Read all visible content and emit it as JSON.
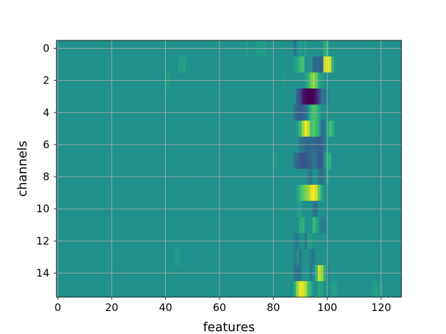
{
  "chart_data": {
    "type": "heatmap",
    "xlabel": "features",
    "ylabel": "channels",
    "x_ticks": [
      0,
      20,
      40,
      60,
      80,
      100,
      120
    ],
    "y_ticks": [
      0,
      2,
      4,
      6,
      8,
      10,
      12,
      14
    ],
    "xlim": [
      -0.5,
      127.5
    ],
    "ylim": [
      15.5,
      -0.5
    ],
    "n_rows": 16,
    "n_cols": 128,
    "grid": true,
    "colormap": "viridis",
    "default_value": 0.0,
    "value_range": [
      -1.0,
      1.0
    ],
    "cells": [
      {
        "row": 0,
        "values": {
          "70": 0.08,
          "74": 0.1,
          "75": 0.12,
          "76": 0.1,
          "77": 0.08,
          "88": -0.25,
          "90": 0.1,
          "91": 0.05,
          "92": 0.12,
          "99": 0.25,
          "100": 0.3
        }
      },
      {
        "row": 1,
        "values": {
          "45": 0.12,
          "46": 0.12,
          "47": 0.12,
          "88": 0.1,
          "89": 0.2,
          "90": 0.35,
          "91": 0.4,
          "95": -0.3,
          "96": -0.3,
          "97": -0.35,
          "98": -0.35,
          "99": 0.8,
          "100": 1.0,
          "101": 0.85,
          "102": 0.3
        }
      },
      {
        "row": 2,
        "values": {
          "40": 0.08,
          "41": 0.08,
          "84": 0.08,
          "92": 0.15,
          "93": 0.3,
          "94": 0.55,
          "95": 0.7,
          "96": 0.5,
          "97": 0.2,
          "98": 0.1
        }
      },
      {
        "row": 3,
        "values": {
          "89": -0.4,
          "90": -0.55,
          "91": -0.85,
          "92": -0.95,
          "93": -1.0,
          "94": -1.0,
          "95": -0.95,
          "96": -0.8,
          "97": -0.55,
          "98": -0.25,
          "99": -0.2,
          "100": -0.15
        }
      },
      {
        "row": 4,
        "values": {
          "88": -0.3,
          "89": -0.35,
          "90": -0.4,
          "91": -0.35,
          "92": -0.3,
          "94": 0.3,
          "95": 0.45,
          "96": 0.35,
          "97": 0.2
        }
      },
      {
        "row": 5,
        "values": {
          "89": 0.15,
          "90": 0.35,
          "91": 0.7,
          "92": 0.95,
          "93": 0.8,
          "94": 0.4,
          "95": 0.5,
          "96": 0.35,
          "97": 0.2,
          "98": -0.25,
          "99": -0.2,
          "100": 0.1,
          "101": 0.4,
          "102": 0.3
        }
      },
      {
        "row": 6,
        "values": {
          "90": -0.2,
          "91": -0.25,
          "92": -0.3,
          "93": -0.35,
          "94": -0.3,
          "95": -0.3,
          "96": -0.35,
          "97": -0.4,
          "98": -0.35,
          "99": -0.2
        }
      },
      {
        "row": 7,
        "values": {
          "80": 0.08,
          "81": 0.08,
          "88": -0.25,
          "89": -0.35,
          "90": -0.45,
          "91": -0.5,
          "92": -0.45,
          "93": -0.4,
          "94": -0.35,
          "95": -0.2,
          "96": -0.3,
          "97": -0.45,
          "98": -0.4,
          "100": 0.25,
          "101": 0.3
        }
      },
      {
        "row": 8,
        "values": {
          "93": -0.15,
          "94": -0.2,
          "97": -0.2,
          "98": -0.25,
          "99": -0.15,
          "100": 0.15
        }
      },
      {
        "row": 9,
        "values": {
          "89": 0.15,
          "90": 0.35,
          "91": 0.5,
          "92": 0.6,
          "93": 0.7,
          "94": 0.9,
          "95": 1.0,
          "96": 0.85,
          "97": 0.5,
          "98": 0.2
        }
      },
      {
        "row": 10,
        "values": {
          "89": 0.1,
          "90": 0.15,
          "95": -0.2,
          "96": -0.25
        }
      },
      {
        "row": 11,
        "values": {
          "90": 0.25,
          "91": 0.3,
          "95": 0.35,
          "96": 0.2,
          "98": -0.2,
          "99": -0.15
        }
      },
      {
        "row": 12,
        "values": {
          "88": -0.15,
          "89": -0.2,
          "92": -0.2,
          "93": 0.1,
          "94": 0.12
        }
      },
      {
        "row": 13,
        "values": {
          "44": 0.08,
          "45": 0.08,
          "88": -0.15,
          "90": -0.2,
          "94": -0.15,
          "95": -0.2
        }
      },
      {
        "row": 14,
        "values": {
          "88": -0.2,
          "89": -0.25,
          "90": -0.2,
          "94": -0.2,
          "96": 0.35,
          "97": 0.85,
          "98": 0.7,
          "99": 0.3,
          "100": -0.1
        }
      },
      {
        "row": 15,
        "values": {
          "88": 0.3,
          "89": 0.7,
          "90": 0.95,
          "91": 0.9,
          "92": 0.75,
          "93": 0.4,
          "94": 0.25,
          "97": 0.2,
          "98": 0.15,
          "102": 0.1,
          "103": 0.12,
          "117": 0.08,
          "118": 0.1,
          "119": 0.1,
          "120": 0.08
        }
      }
    ]
  }
}
